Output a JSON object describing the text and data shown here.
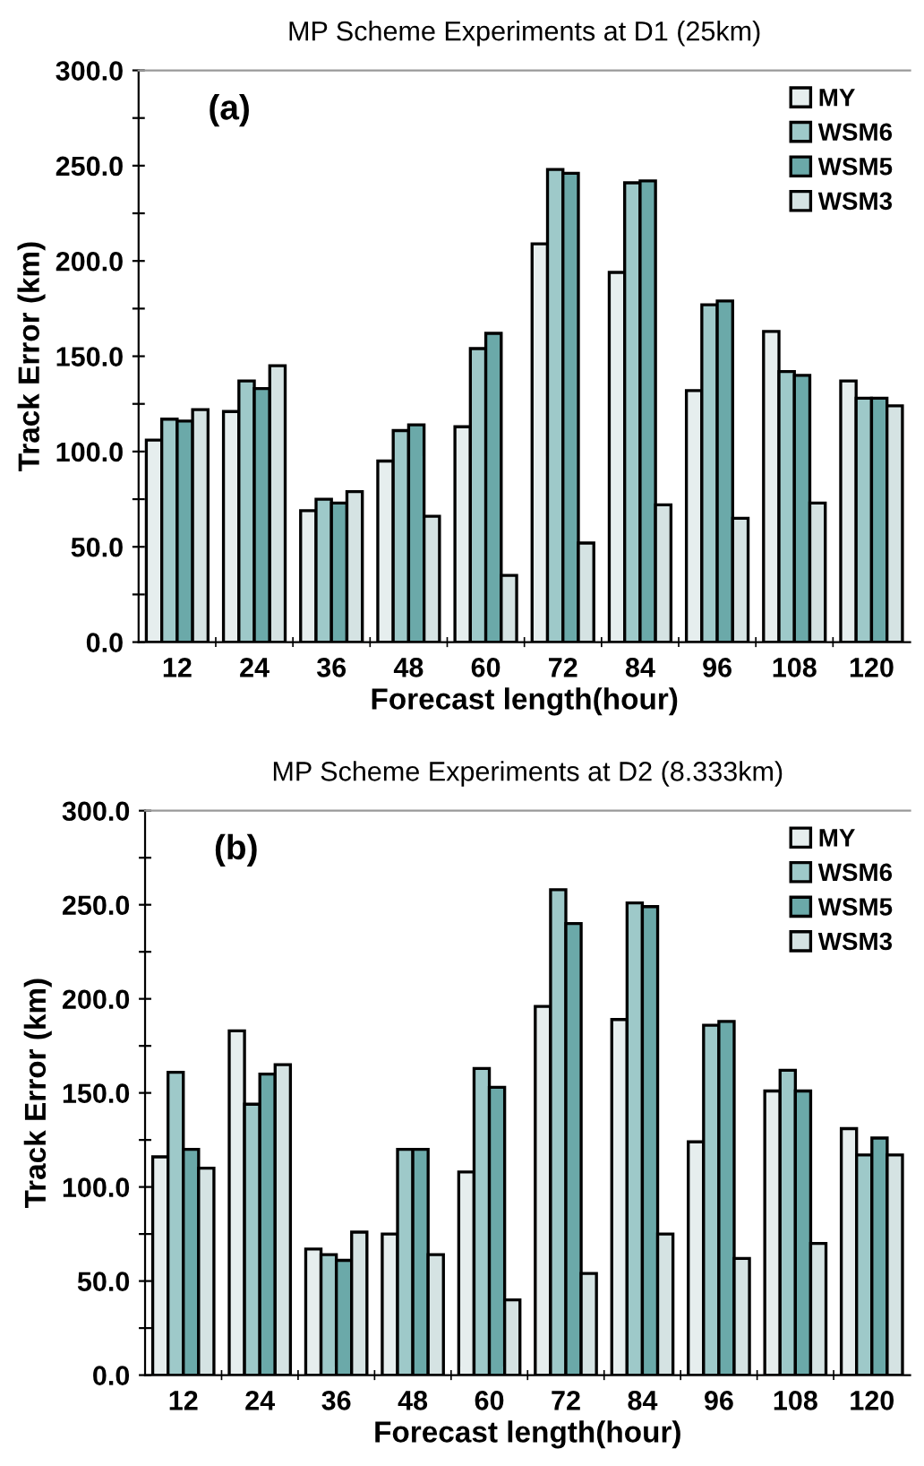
{
  "chart_data": [
    {
      "type": "bar",
      "title": "MP Scheme Experiments at D1 (25km)",
      "xlabel": "Forecast length(hour)",
      "ylabel": "Track Error (km)",
      "annotations": [
        "(a)"
      ],
      "categories": [
        "12",
        "24",
        "36",
        "48",
        "60",
        "72",
        "84",
        "96",
        "108",
        "120"
      ],
      "series": [
        {
          "name": "MY",
          "color": "#e6eeee",
          "values": [
            106,
            121,
            69,
            95,
            113,
            209,
            194,
            132,
            163,
            137
          ]
        },
        {
          "name": "WSM6",
          "color": "#9ec9c9",
          "values": [
            117,
            137,
            75,
            111,
            154,
            248,
            241,
            177,
            142,
            128
          ]
        },
        {
          "name": "WSM5",
          "color": "#6ba9a9",
          "values": [
            116,
            133,
            73,
            114,
            162,
            246,
            242,
            179,
            140,
            128
          ]
        },
        {
          "name": "WSM3",
          "color": "#d5e3e3",
          "values": [
            122,
            145,
            79,
            66,
            35,
            52,
            72,
            65,
            73,
            124
          ]
        }
      ],
      "ylim": [
        0,
        300
      ],
      "yticks": [
        {
          "value": 0,
          "label": "0.0"
        },
        {
          "value": 25,
          "label": null
        },
        {
          "value": 50,
          "label": "50.0"
        },
        {
          "value": 75,
          "label": null
        },
        {
          "value": 100,
          "label": "100.0"
        },
        {
          "value": 125,
          "label": null
        },
        {
          "value": 150,
          "label": "150.0"
        },
        {
          "value": 175,
          "label": null
        },
        {
          "value": 200,
          "label": "200.0"
        },
        {
          "value": 225,
          "label": null
        },
        {
          "value": 250,
          "label": "250.0"
        },
        {
          "value": 275,
          "label": null
        },
        {
          "value": 300,
          "label": "300.0"
        }
      ],
      "legend": "top right",
      "grid": false
    },
    {
      "type": "bar",
      "title": "MP Scheme Experiments at D2 (8.333km)",
      "xlabel": "Forecast length(hour)",
      "ylabel": "Track Error (km)",
      "annotations": [
        "(b)"
      ],
      "categories": [
        "12",
        "24",
        "36",
        "48",
        "60",
        "72",
        "84",
        "96",
        "108",
        "120"
      ],
      "series": [
        {
          "name": "MY",
          "color": "#e6eeee",
          "values": [
            116,
            183,
            67,
            75,
            108,
            196,
            189,
            124,
            151,
            131
          ]
        },
        {
          "name": "WSM6",
          "color": "#9ec9c9",
          "values": [
            161,
            144,
            64,
            120,
            163,
            258,
            251,
            186,
            162,
            117
          ]
        },
        {
          "name": "WSM5",
          "color": "#6ba9a9",
          "values": [
            120,
            160,
            61,
            120,
            153,
            240,
            249,
            188,
            151,
            126
          ]
        },
        {
          "name": "WSM3",
          "color": "#d5e3e3",
          "values": [
            110,
            165,
            76,
            64,
            40,
            54,
            75,
            62,
            70,
            117
          ]
        }
      ],
      "ylim": [
        0,
        300
      ],
      "yticks": [
        {
          "value": 0,
          "label": "0.0"
        },
        {
          "value": 25,
          "label": null
        },
        {
          "value": 50,
          "label": "50.0"
        },
        {
          "value": 75,
          "label": null
        },
        {
          "value": 100,
          "label": "100.0"
        },
        {
          "value": 125,
          "label": null
        },
        {
          "value": 150,
          "label": "150.0"
        },
        {
          "value": 175,
          "label": null
        },
        {
          "value": 200,
          "label": "200.0"
        },
        {
          "value": 225,
          "label": null
        },
        {
          "value": 250,
          "label": "250.0"
        },
        {
          "value": 275,
          "label": null
        },
        {
          "value": 300,
          "label": "300.0"
        }
      ],
      "legend": "top right",
      "grid": false
    }
  ]
}
